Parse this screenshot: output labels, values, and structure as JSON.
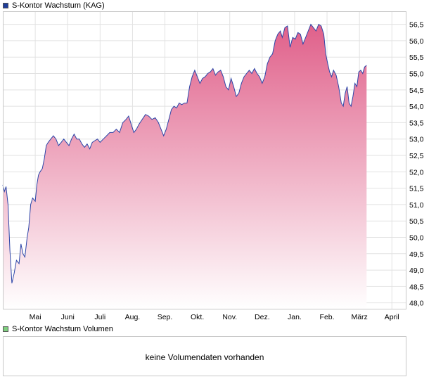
{
  "price_legend": {
    "label": "S-Kontor Wachstum (KAG)",
    "color": "#1f3d9a"
  },
  "volume_legend": {
    "label": "S-Kontor Wachstum Volumen",
    "color": "#7fcf7f"
  },
  "volume_panel": {
    "message": "keine Volumendaten vorhanden"
  },
  "chart_data": {
    "type": "area",
    "title": "S-Kontor Wachstum (KAG)",
    "xlabel": "",
    "ylabel": "",
    "ylim": [
      47.8,
      56.9
    ],
    "yticks": [
      "56,5",
      "56,0",
      "55,5",
      "55,0",
      "54,5",
      "54,0",
      "53,5",
      "53,0",
      "52,5",
      "52,0",
      "51,5",
      "51,0",
      "50,5",
      "50,0",
      "49,5",
      "49,0",
      "48,5",
      "48,0"
    ],
    "ytick_values": [
      56.5,
      56.0,
      55.5,
      55.0,
      54.5,
      54.0,
      53.5,
      53.0,
      52.5,
      52.0,
      51.5,
      51.0,
      50.5,
      50.0,
      49.5,
      49.0,
      48.5,
      48.0
    ],
    "xticks": [
      "Mai",
      "Juni",
      "Juli",
      "Aug.",
      "Sep.",
      "Okt.",
      "Nov.",
      "Dez.",
      "Jan.",
      "Feb.",
      "März",
      "April"
    ],
    "xrange": [
      0,
      12.45
    ],
    "grid": true,
    "line_color": "#2b45a8",
    "fill_top_color": "#e0608a",
    "fill_bottom_color": "#ffffff",
    "series": [
      {
        "values": [
          [
            0.0,
            51.6
          ],
          [
            0.05,
            51.4
          ],
          [
            0.1,
            51.55
          ],
          [
            0.16,
            51.0
          ],
          [
            0.22,
            49.6
          ],
          [
            0.28,
            48.6
          ],
          [
            0.35,
            48.9
          ],
          [
            0.42,
            49.3
          ],
          [
            0.5,
            49.2
          ],
          [
            0.56,
            49.8
          ],
          [
            0.62,
            49.5
          ],
          [
            0.68,
            49.4
          ],
          [
            0.75,
            50.0
          ],
          [
            0.8,
            50.3
          ],
          [
            0.86,
            51.0
          ],
          [
            0.92,
            51.2
          ],
          [
            1.0,
            51.1
          ],
          [
            1.05,
            51.6
          ],
          [
            1.1,
            51.9
          ],
          [
            1.15,
            52.0
          ],
          [
            1.22,
            52.1
          ],
          [
            1.28,
            52.4
          ],
          [
            1.34,
            52.8
          ],
          [
            1.4,
            52.9
          ],
          [
            1.48,
            53.0
          ],
          [
            1.56,
            53.1
          ],
          [
            1.64,
            53.0
          ],
          [
            1.72,
            52.8
          ],
          [
            1.8,
            52.9
          ],
          [
            1.88,
            53.0
          ],
          [
            1.96,
            52.9
          ],
          [
            2.04,
            52.8
          ],
          [
            2.12,
            53.0
          ],
          [
            2.2,
            53.15
          ],
          [
            2.28,
            53.0
          ],
          [
            2.36,
            53.0
          ],
          [
            2.44,
            52.85
          ],
          [
            2.52,
            52.75
          ],
          [
            2.6,
            52.85
          ],
          [
            2.68,
            52.7
          ],
          [
            2.76,
            52.9
          ],
          [
            2.84,
            52.95
          ],
          [
            2.92,
            53.0
          ],
          [
            3.0,
            52.9
          ],
          [
            3.1,
            53.0
          ],
          [
            3.2,
            53.1
          ],
          [
            3.3,
            53.2
          ],
          [
            3.4,
            53.2
          ],
          [
            3.5,
            53.3
          ],
          [
            3.6,
            53.2
          ],
          [
            3.7,
            53.5
          ],
          [
            3.8,
            53.6
          ],
          [
            3.88,
            53.7
          ],
          [
            3.96,
            53.45
          ],
          [
            4.04,
            53.2
          ],
          [
            4.12,
            53.3
          ],
          [
            4.2,
            53.45
          ],
          [
            4.3,
            53.6
          ],
          [
            4.4,
            53.75
          ],
          [
            4.5,
            53.7
          ],
          [
            4.6,
            53.6
          ],
          [
            4.7,
            53.65
          ],
          [
            4.8,
            53.5
          ],
          [
            4.88,
            53.3
          ],
          [
            4.96,
            53.1
          ],
          [
            5.04,
            53.3
          ],
          [
            5.12,
            53.6
          ],
          [
            5.2,
            53.9
          ],
          [
            5.28,
            54.0
          ],
          [
            5.36,
            53.95
          ],
          [
            5.44,
            54.1
          ],
          [
            5.52,
            54.05
          ],
          [
            5.6,
            54.1
          ],
          [
            5.68,
            54.1
          ],
          [
            5.76,
            54.6
          ],
          [
            5.84,
            54.9
          ],
          [
            5.92,
            55.1
          ],
          [
            6.0,
            54.9
          ],
          [
            6.08,
            54.7
          ],
          [
            6.16,
            54.85
          ],
          [
            6.24,
            54.9
          ],
          [
            6.32,
            55.0
          ],
          [
            6.4,
            55.05
          ],
          [
            6.48,
            55.15
          ],
          [
            6.56,
            54.95
          ],
          [
            6.64,
            55.05
          ],
          [
            6.72,
            55.1
          ],
          [
            6.8,
            54.9
          ],
          [
            6.88,
            54.6
          ],
          [
            6.96,
            54.5
          ],
          [
            7.04,
            54.85
          ],
          [
            7.12,
            54.6
          ],
          [
            7.2,
            54.3
          ],
          [
            7.28,
            54.4
          ],
          [
            7.36,
            54.7
          ],
          [
            7.44,
            54.9
          ],
          [
            7.52,
            55.0
          ],
          [
            7.6,
            55.1
          ],
          [
            7.68,
            55.0
          ],
          [
            7.76,
            55.15
          ],
          [
            7.84,
            55.0
          ],
          [
            7.92,
            54.9
          ],
          [
            8.0,
            54.7
          ],
          [
            8.08,
            54.9
          ],
          [
            8.16,
            55.3
          ],
          [
            8.24,
            55.5
          ],
          [
            8.32,
            55.6
          ],
          [
            8.4,
            56.0
          ],
          [
            8.48,
            56.2
          ],
          [
            8.56,
            56.3
          ],
          [
            8.62,
            56.1
          ],
          [
            8.7,
            56.4
          ],
          [
            8.78,
            56.45
          ],
          [
            8.86,
            55.8
          ],
          [
            8.94,
            56.1
          ],
          [
            9.02,
            56.05
          ],
          [
            9.1,
            56.25
          ],
          [
            9.18,
            56.2
          ],
          [
            9.26,
            55.9
          ],
          [
            9.34,
            56.1
          ],
          [
            9.42,
            56.3
          ],
          [
            9.5,
            56.5
          ],
          [
            9.58,
            56.4
          ],
          [
            9.66,
            56.3
          ],
          [
            9.74,
            56.5
          ],
          [
            9.82,
            56.45
          ],
          [
            9.9,
            56.2
          ],
          [
            9.96,
            55.6
          ],
          [
            10.02,
            55.3
          ],
          [
            10.08,
            55.05
          ],
          [
            10.14,
            54.9
          ],
          [
            10.2,
            55.1
          ],
          [
            10.28,
            54.95
          ],
          [
            10.36,
            54.6
          ],
          [
            10.44,
            54.1
          ],
          [
            10.5,
            54.0
          ],
          [
            10.56,
            54.4
          ],
          [
            10.62,
            54.6
          ],
          [
            10.68,
            54.1
          ],
          [
            10.74,
            54.0
          ],
          [
            10.8,
            54.3
          ],
          [
            10.86,
            54.7
          ],
          [
            10.92,
            54.6
          ],
          [
            10.98,
            55.05
          ],
          [
            11.04,
            55.1
          ],
          [
            11.1,
            55.0
          ],
          [
            11.16,
            55.2
          ],
          [
            11.22,
            55.25
          ]
        ]
      }
    ]
  }
}
